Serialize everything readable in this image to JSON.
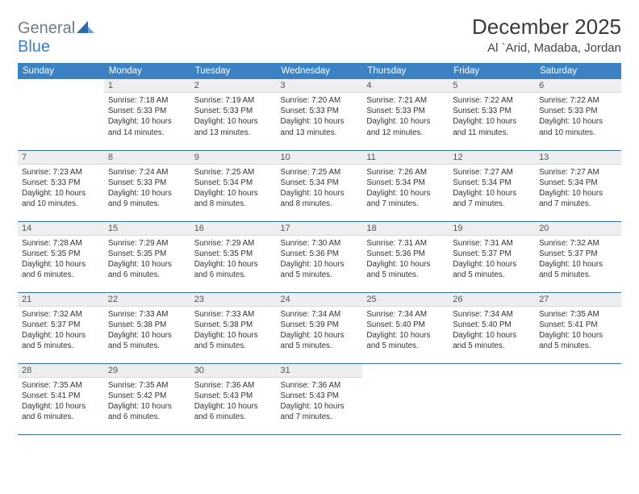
{
  "logo": {
    "text1": "General",
    "text2": "Blue"
  },
  "title": "December 2025",
  "location": "Al `Arid, Madaba, Jordan",
  "colors": {
    "header_bg": "#3b82c4",
    "header_text": "#ffffff",
    "daynum_bg": "#eceeef",
    "border": "#3b6fa8",
    "logo_gray": "#6f7b85",
    "logo_blue": "#3b7fc4"
  },
  "weekdays": [
    "Sunday",
    "Monday",
    "Tuesday",
    "Wednesday",
    "Thursday",
    "Friday",
    "Saturday"
  ],
  "first_weekday_index": 1,
  "days": [
    {
      "n": 1,
      "sr": "7:18 AM",
      "ss": "5:33 PM",
      "dl": "10 hours and 14 minutes."
    },
    {
      "n": 2,
      "sr": "7:19 AM",
      "ss": "5:33 PM",
      "dl": "10 hours and 13 minutes."
    },
    {
      "n": 3,
      "sr": "7:20 AM",
      "ss": "5:33 PM",
      "dl": "10 hours and 13 minutes."
    },
    {
      "n": 4,
      "sr": "7:21 AM",
      "ss": "5:33 PM",
      "dl": "10 hours and 12 minutes."
    },
    {
      "n": 5,
      "sr": "7:22 AM",
      "ss": "5:33 PM",
      "dl": "10 hours and 11 minutes."
    },
    {
      "n": 6,
      "sr": "7:22 AM",
      "ss": "5:33 PM",
      "dl": "10 hours and 10 minutes."
    },
    {
      "n": 7,
      "sr": "7:23 AM",
      "ss": "5:33 PM",
      "dl": "10 hours and 10 minutes."
    },
    {
      "n": 8,
      "sr": "7:24 AM",
      "ss": "5:33 PM",
      "dl": "10 hours and 9 minutes."
    },
    {
      "n": 9,
      "sr": "7:25 AM",
      "ss": "5:34 PM",
      "dl": "10 hours and 8 minutes."
    },
    {
      "n": 10,
      "sr": "7:25 AM",
      "ss": "5:34 PM",
      "dl": "10 hours and 8 minutes."
    },
    {
      "n": 11,
      "sr": "7:26 AM",
      "ss": "5:34 PM",
      "dl": "10 hours and 7 minutes."
    },
    {
      "n": 12,
      "sr": "7:27 AM",
      "ss": "5:34 PM",
      "dl": "10 hours and 7 minutes."
    },
    {
      "n": 13,
      "sr": "7:27 AM",
      "ss": "5:34 PM",
      "dl": "10 hours and 7 minutes."
    },
    {
      "n": 14,
      "sr": "7:28 AM",
      "ss": "5:35 PM",
      "dl": "10 hours and 6 minutes."
    },
    {
      "n": 15,
      "sr": "7:29 AM",
      "ss": "5:35 PM",
      "dl": "10 hours and 6 minutes."
    },
    {
      "n": 16,
      "sr": "7:29 AM",
      "ss": "5:35 PM",
      "dl": "10 hours and 6 minutes."
    },
    {
      "n": 17,
      "sr": "7:30 AM",
      "ss": "5:36 PM",
      "dl": "10 hours and 5 minutes."
    },
    {
      "n": 18,
      "sr": "7:31 AM",
      "ss": "5:36 PM",
      "dl": "10 hours and 5 minutes."
    },
    {
      "n": 19,
      "sr": "7:31 AM",
      "ss": "5:37 PM",
      "dl": "10 hours and 5 minutes."
    },
    {
      "n": 20,
      "sr": "7:32 AM",
      "ss": "5:37 PM",
      "dl": "10 hours and 5 minutes."
    },
    {
      "n": 21,
      "sr": "7:32 AM",
      "ss": "5:37 PM",
      "dl": "10 hours and 5 minutes."
    },
    {
      "n": 22,
      "sr": "7:33 AM",
      "ss": "5:38 PM",
      "dl": "10 hours and 5 minutes."
    },
    {
      "n": 23,
      "sr": "7:33 AM",
      "ss": "5:38 PM",
      "dl": "10 hours and 5 minutes."
    },
    {
      "n": 24,
      "sr": "7:34 AM",
      "ss": "5:39 PM",
      "dl": "10 hours and 5 minutes."
    },
    {
      "n": 25,
      "sr": "7:34 AM",
      "ss": "5:40 PM",
      "dl": "10 hours and 5 minutes."
    },
    {
      "n": 26,
      "sr": "7:34 AM",
      "ss": "5:40 PM",
      "dl": "10 hours and 5 minutes."
    },
    {
      "n": 27,
      "sr": "7:35 AM",
      "ss": "5:41 PM",
      "dl": "10 hours and 5 minutes."
    },
    {
      "n": 28,
      "sr": "7:35 AM",
      "ss": "5:41 PM",
      "dl": "10 hours and 6 minutes."
    },
    {
      "n": 29,
      "sr": "7:35 AM",
      "ss": "5:42 PM",
      "dl": "10 hours and 6 minutes."
    },
    {
      "n": 30,
      "sr": "7:36 AM",
      "ss": "5:43 PM",
      "dl": "10 hours and 6 minutes."
    },
    {
      "n": 31,
      "sr": "7:36 AM",
      "ss": "5:43 PM",
      "dl": "10 hours and 7 minutes."
    }
  ],
  "labels": {
    "sunrise": "Sunrise:",
    "sunset": "Sunset:",
    "daylight": "Daylight:"
  }
}
